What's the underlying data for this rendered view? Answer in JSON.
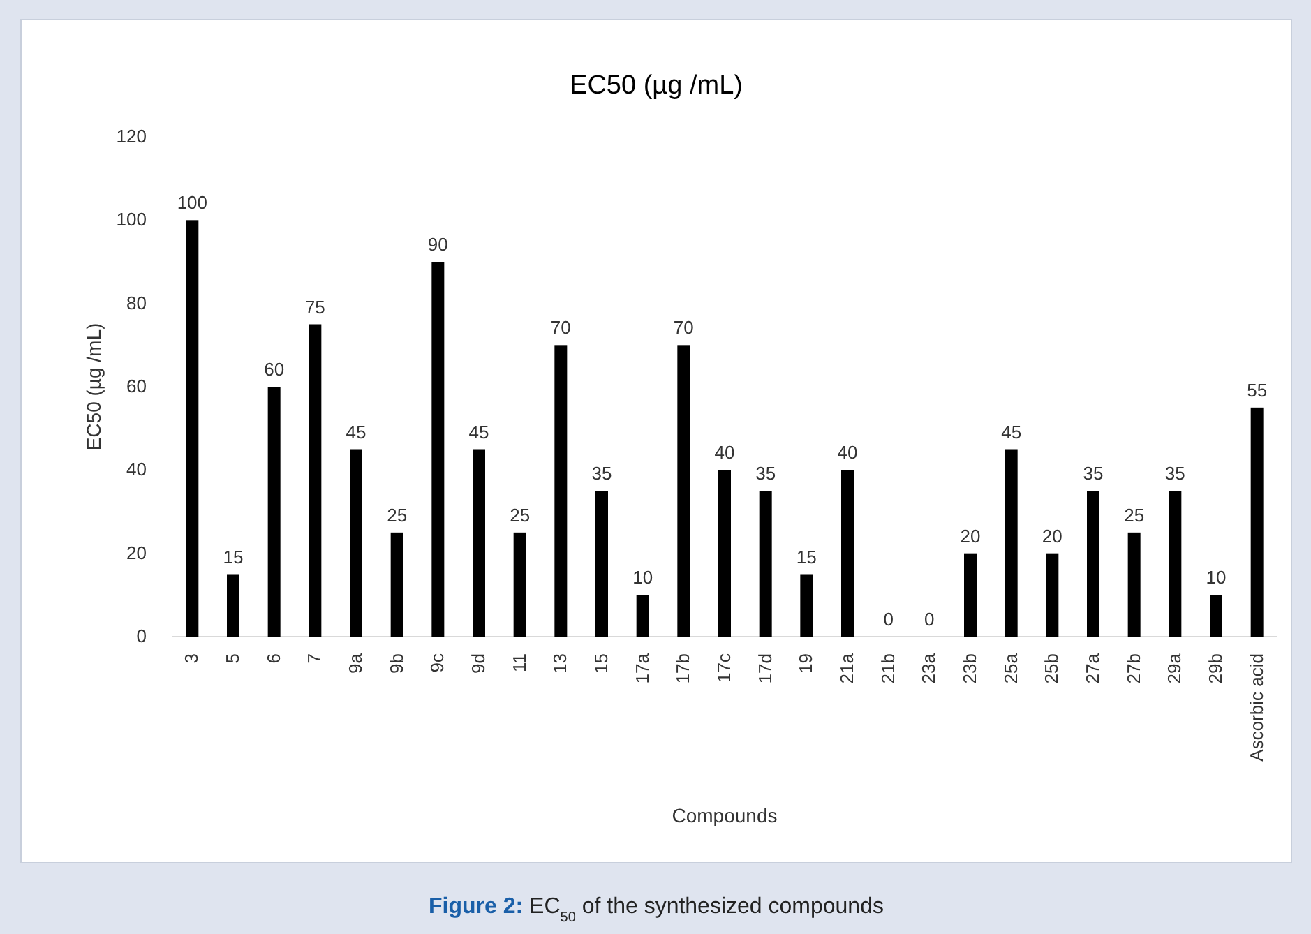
{
  "chart_data": {
    "type": "bar",
    "title": "EC50 (µg /mL)",
    "xlabel": "Compounds",
    "ylabel": "EC50 (µg /mL)",
    "categories": [
      "3",
      "5",
      "6",
      "7",
      "9a",
      "9b",
      "9c",
      "9d",
      "11",
      "13",
      "15",
      "17a",
      "17b",
      "17c",
      "17d",
      "19",
      "21a",
      "21b",
      "23a",
      "23b",
      "25a",
      "25b",
      "27a",
      "27b",
      "29a",
      "29b",
      "Ascorbic acid"
    ],
    "values": [
      100,
      15,
      60,
      75,
      45,
      25,
      90,
      45,
      25,
      70,
      35,
      10,
      70,
      40,
      35,
      15,
      40,
      0,
      0,
      20,
      45,
      20,
      35,
      25,
      35,
      10,
      55
    ],
    "color": "#000000",
    "ylim": [
      0,
      120
    ],
    "yticks": [
      0,
      20,
      40,
      60,
      80,
      100,
      120
    ],
    "grid": false,
    "data_labels": true,
    "annotations": [
      "Figure 2: EC$_{50}$ of the synthesized compounds"
    ]
  }
}
